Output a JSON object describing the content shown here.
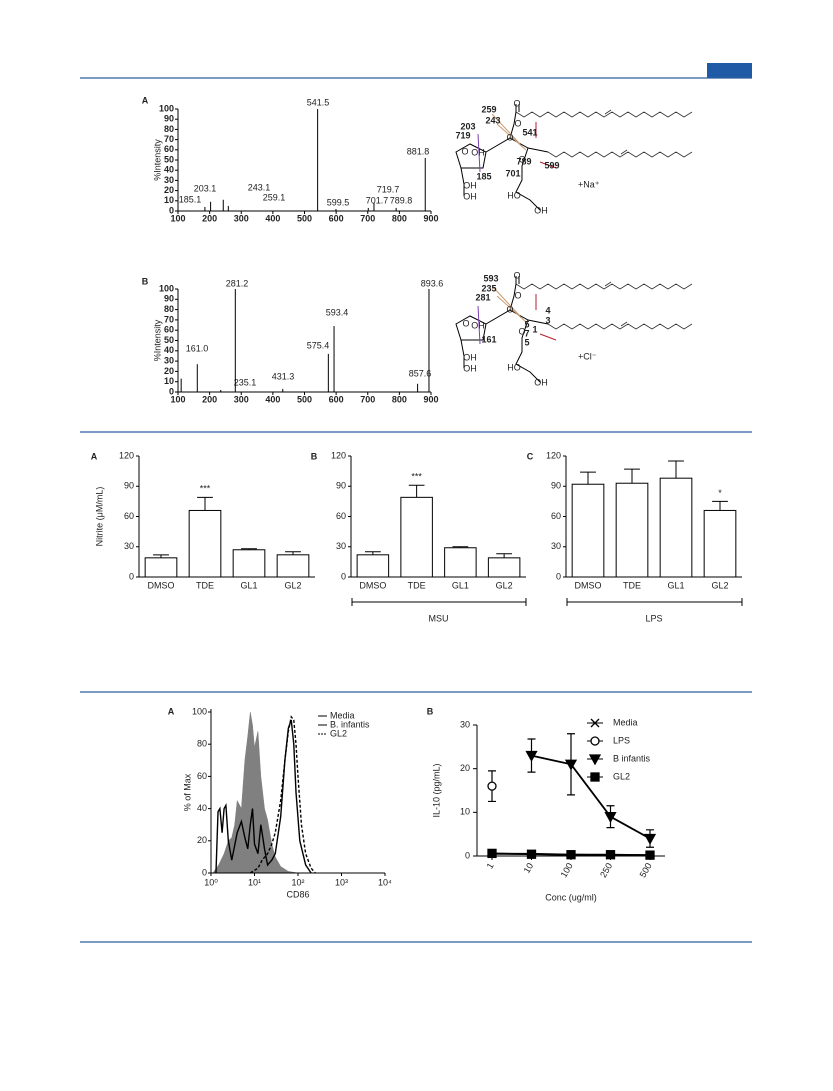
{
  "chart_data": [
    {
      "type": "spectrum",
      "panel": "A",
      "ylabel": "%Intensity",
      "xlim": [
        100,
        900
      ],
      "xticks": [
        100,
        200,
        300,
        400,
        500,
        600,
        700,
        800,
        900
      ],
      "ylim": [
        0,
        100
      ],
      "yticks": [
        0,
        10,
        20,
        30,
        40,
        50,
        60,
        70,
        80,
        90,
        100
      ],
      "color": "#222222",
      "x": [
        185.1,
        203.1,
        243.1,
        259.1,
        541.5,
        599.5,
        701.7,
        719.7,
        789.8,
        881.8
      ],
      "values": [
        4,
        9,
        11,
        5,
        100,
        2,
        3,
        8,
        3,
        52
      ],
      "labels": [
        "185.1",
        "203.1",
        "243.1",
        "259.1",
        "541.5",
        "599.5",
        "701.7",
        "719.7",
        "789.8",
        "881.8"
      ]
    },
    {
      "type": "spectrum",
      "panel": "B",
      "ylabel": "%Intensity",
      "xlim": [
        100,
        900
      ],
      "xticks": [
        100,
        200,
        300,
        400,
        500,
        600,
        700,
        800,
        900
      ],
      "ylim": [
        0,
        100
      ],
      "yticks": [
        0,
        10,
        20,
        30,
        40,
        50,
        60,
        70,
        80,
        90,
        100
      ],
      "color": "#222222",
      "x": [
        110,
        161.0,
        235.1,
        281.2,
        431.3,
        575.4,
        593.4,
        857.6,
        893.6
      ],
      "values": [
        13,
        27,
        2,
        100,
        3,
        37,
        64,
        8,
        100
      ],
      "labels": [
        null,
        "161.0",
        "235.1",
        "281.2",
        "431.3",
        "575.4",
        "593.4",
        "857.6",
        "893.6"
      ]
    },
    {
      "type": "bar",
      "panel": "A",
      "ylabel": "Nitrite (μM/mL)",
      "categories": [
        "DMSO",
        "TDE",
        "GL1",
        "GL2"
      ],
      "values": [
        19,
        66,
        27,
        22
      ],
      "errors": [
        3,
        13,
        1,
        3
      ],
      "significance": [
        null,
        "***",
        null,
        null
      ],
      "ylim": [
        0,
        120
      ],
      "yticks": [
        0,
        30,
        60,
        90,
        120
      ],
      "color": "#ffffff"
    },
    {
      "type": "bar",
      "panel": "B",
      "categories": [
        "DMSO",
        "TDE",
        "GL1",
        "GL2"
      ],
      "values": [
        22,
        79,
        29,
        19
      ],
      "errors": [
        3,
        12,
        1,
        4
      ],
      "significance": [
        null,
        "***",
        null,
        null
      ],
      "group_label": "MSU",
      "ylim": [
        0,
        120
      ],
      "yticks": [
        0,
        30,
        60,
        90,
        120
      ],
      "color": "#ffffff"
    },
    {
      "type": "bar",
      "panel": "C",
      "categories": [
        "DMSO",
        "TDE",
        "GL1",
        "GL2"
      ],
      "values": [
        92,
        93,
        98,
        66
      ],
      "errors": [
        12,
        14,
        17,
        9
      ],
      "significance": [
        null,
        null,
        null,
        "*"
      ],
      "group_label": "LPS",
      "ylim": [
        0,
        120
      ],
      "yticks": [
        0,
        30,
        60,
        90,
        120
      ],
      "color": "#ffffff"
    },
    {
      "type": "flow",
      "panel": "A",
      "xlabel": "CD86",
      "ylabel": "% of Max",
      "log_x": true,
      "legend": "upper right",
      "xlim": [
        1,
        10000
      ],
      "xticks": [
        {
          "value": 1,
          "label": "10⁰"
        },
        {
          "value": 10,
          "label": "10¹"
        },
        {
          "value": 100,
          "label": "10²"
        },
        {
          "value": 1000,
          "label": "10³"
        },
        {
          "value": 10000,
          "label": "10⁴"
        }
      ],
      "ylim": [
        0,
        100
      ],
      "yticks": [
        0,
        20,
        40,
        60,
        80,
        100
      ],
      "series": [
        {
          "name": "Media",
          "color": "#808080",
          "fill": true,
          "dash": false,
          "x": [
            1.1,
            1.5,
            2,
            2.5,
            3,
            3.5,
            4,
            5,
            6,
            7,
            8,
            9,
            10,
            12,
            14,
            17,
            20,
            25,
            30,
            40,
            60,
            100
          ],
          "values": [
            0,
            5,
            12,
            20,
            22,
            30,
            45,
            40,
            70,
            85,
            100,
            92,
            78,
            88,
            60,
            40,
            33,
            18,
            10,
            4,
            1,
            0
          ]
        },
        {
          "name": "B. infantis",
          "color": "#000000",
          "fill": false,
          "dash": false,
          "x": [
            1.3,
            1.45,
            1.6,
            1.8,
            2.0,
            2.2,
            2.5,
            3,
            4,
            5,
            6,
            7,
            8,
            9,
            10,
            12,
            14,
            17,
            20,
            25,
            30,
            40,
            50,
            60,
            70,
            80,
            90,
            110,
            150,
            200
          ],
          "values": [
            0,
            38,
            40,
            25,
            40,
            42,
            20,
            8,
            25,
            32,
            22,
            15,
            30,
            40,
            18,
            12,
            30,
            15,
            5,
            8,
            12,
            35,
            70,
            90,
            95,
            80,
            50,
            20,
            5,
            0
          ]
        },
        {
          "name": "GL2",
          "color": "#000000",
          "fill": false,
          "dash": true,
          "x": [
            8,
            12,
            15,
            20,
            25,
            30,
            40,
            50,
            60,
            70,
            80,
            90,
            100,
            120,
            150,
            200,
            250
          ],
          "values": [
            0,
            3,
            8,
            12,
            18,
            25,
            45,
            70,
            88,
            97,
            95,
            80,
            60,
            30,
            12,
            3,
            0
          ]
        }
      ]
    },
    {
      "type": "line",
      "panel": "B",
      "xlabel": "Conc (ug/ml)",
      "ylabel": "IL-10 (pg/mL)",
      "legend": "upper right",
      "categories": [
        "1",
        "10",
        "100",
        "250",
        "500"
      ],
      "ylim": [
        0,
        30
      ],
      "yticks": [
        0,
        10,
        20,
        30
      ],
      "series": [
        {
          "name": "Media",
          "color": "#000000",
          "marker": "x",
          "values": [
            0.5,
            0.5,
            0.3,
            0.2,
            0.2
          ]
        },
        {
          "name": "LPS",
          "color": "#000000",
          "marker": "circle-open",
          "values": [
            16,
            null,
            null,
            null,
            null
          ],
          "errors": [
            3.5,
            null,
            null,
            null,
            null
          ]
        },
        {
          "name": "B infantis",
          "color": "#000000",
          "marker": "triangle-down",
          "values": [
            null,
            23,
            21,
            9,
            4
          ],
          "errors": [
            null,
            3.8,
            7,
            2.5,
            2
          ]
        },
        {
          "name": "GL2",
          "color": "#000000",
          "marker": "square",
          "values": [
            0.6,
            0.4,
            0.3,
            0.3,
            0.2
          ]
        }
      ]
    }
  ],
  "structures": [
    {
      "ion": "+Na⁺",
      "fragments": [
        {
          "label": "259",
          "color": "#9b5a23"
        },
        {
          "label": "243",
          "color": "#9b5a23"
        },
        {
          "label": "203",
          "color": "#7a3fb0"
        },
        {
          "label": "719",
          "color": "#2b3592"
        },
        {
          "label": "541",
          "color": "#b3202b"
        },
        {
          "label": "789",
          "color": "#9b5a23"
        },
        {
          "label": "599",
          "color": "#9b5a23"
        },
        {
          "label": "185",
          "color": "#2b3592"
        },
        {
          "label": "701",
          "color": "#7a3fb0"
        }
      ],
      "atoms": [
        "O",
        "O",
        "O",
        "O",
        "OH",
        "O",
        "OH",
        "OH",
        "HO",
        "OH"
      ]
    },
    {
      "ion": "+Cl⁻",
      "fragments": [
        {
          "label": "593",
          "color": "#9b5a23"
        },
        {
          "label": "235",
          "color": "#9b5a23"
        },
        {
          "label": "281",
          "color": "#2b3592"
        },
        {
          "label": "4",
          "color": "#9b5a23"
        },
        {
          "label": "3",
          "color": "#9b5a23"
        },
        {
          "label": "5",
          "color": "#2b3592"
        },
        {
          "label": "7",
          "color": "#2b3592"
        },
        {
          "label": "1",
          "color": "#9b5a23"
        },
        {
          "label": "5",
          "color": "#2b3592"
        },
        {
          "label": "161",
          "color": "#b3202b"
        }
      ],
      "atoms": [
        "O",
        "O",
        "O",
        "O",
        "O",
        "OH",
        "OH",
        "OH",
        "HO",
        "OH"
      ]
    }
  ]
}
